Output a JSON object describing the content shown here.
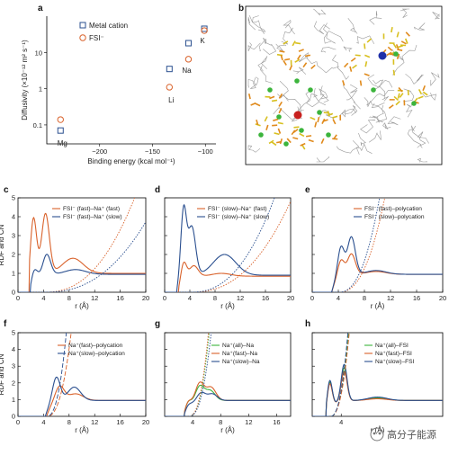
{
  "panel_letters": [
    "a",
    "b",
    "c",
    "d",
    "e",
    "f",
    "g",
    "h"
  ],
  "watermark": "高分子能源",
  "colors": {
    "orange": "#d9622b",
    "blue": "#2a4f8f",
    "green": "#3cb43c",
    "gray": "#9a9a9a"
  },
  "chart_data": [
    {
      "type": "scatter",
      "panel": "a",
      "xlabel": "Binding energy (kcal mol⁻¹)",
      "ylabel": "Diffusivity (×10⁻¹² m² s⁻¹)",
      "xlim": [
        -250,
        -90
      ],
      "ylim_log": [
        0.03,
        100
      ],
      "xticks": [
        "−200",
        "−150",
        "−100"
      ],
      "yticks": [
        "0.1",
        "1",
        "10"
      ],
      "legend": [
        "Metal cation",
        "FSI⁻"
      ],
      "point_labels": [
        "Mg",
        "Li",
        "Na",
        "K"
      ],
      "series": [
        {
          "marker": "square",
          "points": [
            [
              -237,
              0.07
            ],
            [
              -134,
              3.5
            ],
            [
              -116,
              18
            ],
            [
              -101,
              45
            ]
          ]
        },
        {
          "marker": "circle",
          "points": [
            [
              -237,
              0.14
            ],
            [
              -134,
              1.1
            ],
            [
              -116,
              6.5
            ],
            [
              -101,
              40
            ]
          ]
        }
      ]
    },
    {
      "type": "line",
      "panel": "c",
      "ylabel": "RDF and CN",
      "xlabel": "r (Å)",
      "xlim": [
        0,
        20
      ],
      "ylim": [
        0,
        5
      ],
      "xticks": [
        "0",
        "4",
        "8",
        "12",
        "16",
        "20"
      ],
      "yticks": [
        "0",
        "1",
        "2",
        "3",
        "4",
        "5"
      ],
      "legend": [
        "FSI⁻ (fast)–Na⁺ (fast)",
        "FSI⁻ (fast)–Na⁺ (slow)"
      ]
    },
    {
      "type": "line",
      "panel": "d",
      "xlabel": "r (Å)",
      "xlim": [
        0,
        20
      ],
      "ylim": [
        0,
        5
      ],
      "xticks": [
        "0",
        "4",
        "8",
        "12",
        "16",
        "20"
      ],
      "legend": [
        "FSI⁻ (slow)–Na⁺ (fast)",
        "FSI⁻ (slow)–Na⁺ (slow)"
      ]
    },
    {
      "type": "line",
      "panel": "e",
      "xlabel": "r (Å)",
      "xlim": [
        0,
        20
      ],
      "ylim": [
        0,
        5
      ],
      "xticks": [
        "0",
        "4",
        "8",
        "12",
        "16",
        "20"
      ],
      "legend": [
        "FSI⁻ (fast)–polycation",
        "FSI⁻ (slow)–polycation"
      ]
    },
    {
      "type": "line",
      "panel": "f",
      "ylabel": "RDF and CN",
      "xlabel": "r (Å)",
      "xlim": [
        0,
        20
      ],
      "ylim": [
        0,
        5
      ],
      "xticks": [
        "0",
        "4",
        "8",
        "12",
        "16",
        "20"
      ],
      "yticks": [
        "0",
        "1",
        "2",
        "3",
        "4",
        "5"
      ],
      "legend": [
        "Na⁺(fast)–polycation",
        "Na⁺(slow)–polycation"
      ]
    },
    {
      "type": "line",
      "panel": "g",
      "xlabel": "r (Å)",
      "xlim": [
        0,
        18
      ],
      "ylim": [
        0,
        5
      ],
      "xticks": [
        "4",
        "8",
        "12",
        "16"
      ],
      "legend": [
        "Na⁺(all)–Na",
        "Na⁺(fast)–Na",
        "Na⁺(slow)–Na"
      ]
    },
    {
      "type": "line",
      "panel": "h",
      "xlabel": "r (Å)",
      "xlim": [
        0,
        18
      ],
      "ylim": [
        0,
        5
      ],
      "xticks": [
        "4"
      ],
      "legend": [
        "Na⁺(all)–FSI",
        "Na⁺(fast)–FSI",
        "Na⁺(slow)–FSI"
      ]
    }
  ]
}
